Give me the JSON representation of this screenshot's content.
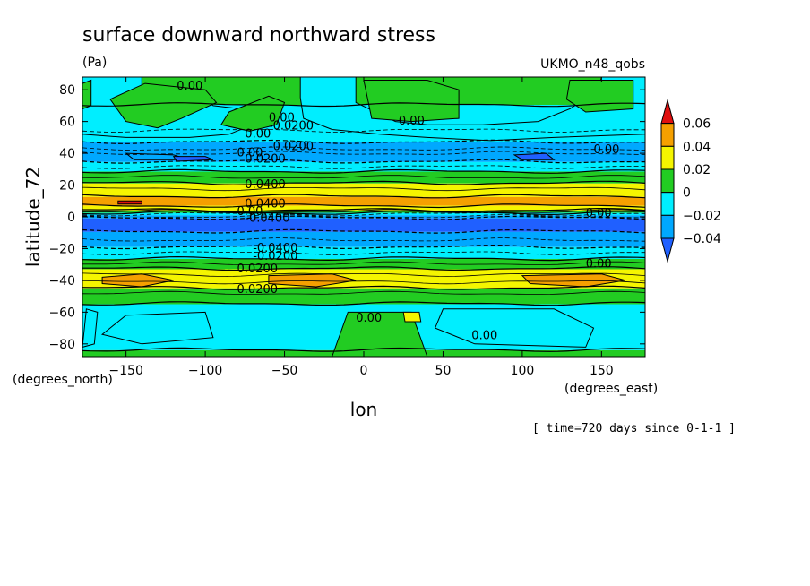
{
  "chart_data": {
    "type": "heatmap",
    "title": "surface downward northward stress",
    "units": "(Pa)",
    "dataset": "UKMO_n48_qobs",
    "xlabel": "lon",
    "ylabel": "latitude_72",
    "x_units_label": "(degrees_east)",
    "y_units_label": "(degrees_north)",
    "time_note": "[ time=720 days since 0-1-1 ]",
    "xlim": [
      -177.5,
      177.5
    ],
    "ylim": [
      -88,
      88
    ],
    "x_ticks": [
      -150,
      -100,
      -50,
      0,
      50,
      100,
      150
    ],
    "y_ticks": [
      80,
      60,
      40,
      20,
      0,
      -20,
      -40,
      -60,
      -80
    ],
    "x_tick_labels": [
      "−150",
      "−100",
      "−50",
      "0",
      "50",
      "100",
      "150"
    ],
    "y_tick_labels": [
      "80",
      "60",
      "40",
      "20",
      "0",
      "−20",
      "−40",
      "−60",
      "−80"
    ],
    "colorbar": {
      "levels": [
        -0.06,
        -0.04,
        -0.02,
        0,
        0.02,
        0.04,
        0.06
      ],
      "labels": [
        "0.06",
        "0.04",
        "0.02",
        "0",
        "−0.02",
        "−0.04"
      ],
      "colors": [
        "#e01010",
        "#f5a000",
        "#f5f500",
        "#22cc22",
        "#00eeff",
        "#00a8ff",
        "#2060ff"
      ]
    },
    "zonal_profile": {
      "lat": [
        88,
        75,
        62,
        52,
        46,
        42,
        38,
        33,
        28,
        22,
        17,
        12,
        8,
        5,
        3,
        1,
        -1,
        -3,
        -5,
        -8,
        -12,
        -17,
        -22,
        -27,
        -31,
        -35,
        -39,
        -43,
        -47,
        -52,
        -58,
        -65,
        -75,
        -88
      ],
      "value": [
        0.005,
        0.002,
        -0.004,
        -0.012,
        -0.022,
        -0.032,
        -0.028,
        -0.015,
        0.002,
        0.018,
        0.032,
        0.042,
        0.045,
        0.03,
        0.005,
        -0.02,
        -0.045,
        -0.05,
        -0.048,
        -0.042,
        -0.035,
        -0.025,
        -0.012,
        0.002,
        0.015,
        0.028,
        0.034,
        0.026,
        0.012,
        0.003,
        -0.004,
        -0.008,
        -0.004,
        0.002
      ]
    },
    "contour_labels": [
      "0.00",
      "0.00",
      "-0.0200",
      "0.00",
      "0.00",
      "-0.0200",
      "0.00",
      "0.0200",
      "0.0400",
      "0.0400",
      "0.00",
      "-0.0400",
      "0.00",
      "-0.0400",
      "-0.0200",
      "0.00",
      "0.0200",
      "0.00",
      "0.0200",
      "0.00",
      "0.00"
    ]
  }
}
